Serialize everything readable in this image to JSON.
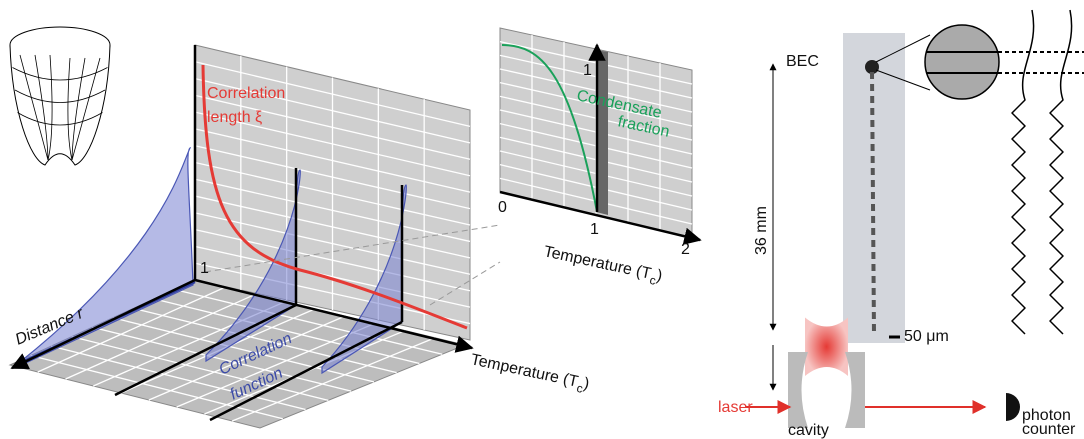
{
  "left_panel": {
    "curve_label": [
      "Correlation",
      "length ξ"
    ],
    "wall_tick": "1",
    "distance_axis": "Distance r",
    "function_label": [
      "Correlation",
      "function"
    ],
    "temperature_axis": [
      "Temperature (T",
      "c",
      ")"
    ]
  },
  "inset": {
    "y_tick": "1",
    "x_ticks": [
      "0",
      "1",
      "2"
    ],
    "curve_label": [
      "Condensate",
      "fraction"
    ],
    "temperature_axis": [
      "Temperature (T",
      "c",
      ")"
    ]
  },
  "right_panel": {
    "bec_label": "BEC",
    "height_label": "36 mm",
    "scale_bar": "50 μm",
    "laser_label": "laser",
    "cavity_label": "cavity",
    "detector_label": [
      "photon",
      "counter"
    ]
  }
}
